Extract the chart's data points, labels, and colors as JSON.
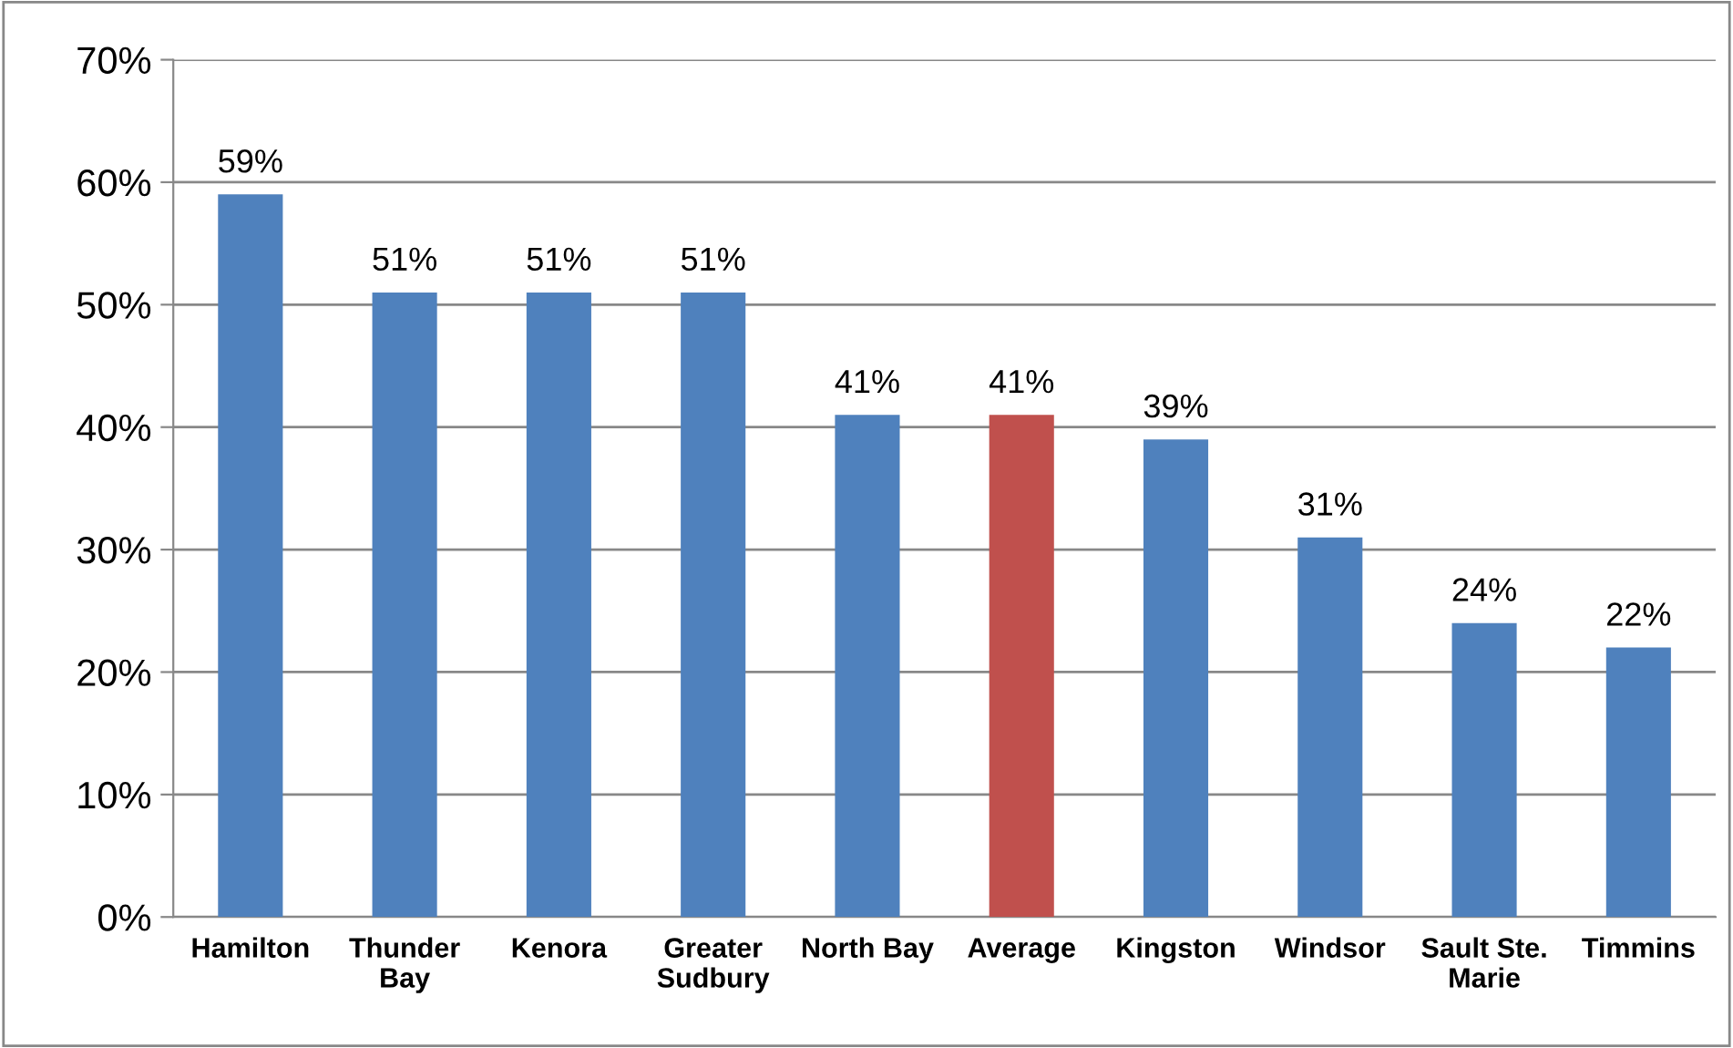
{
  "chart_data": {
    "type": "bar",
    "categories": [
      "Hamilton",
      "Thunder\nBay",
      "Kenora",
      "Greater\nSudbury",
      "North Bay",
      "Average",
      "Kingston",
      "Windsor",
      "Sault Ste.\nMarie",
      "Timmins"
    ],
    "values": [
      59,
      51,
      51,
      51,
      41,
      41,
      39,
      31,
      24,
      22
    ],
    "value_labels": [
      "59%",
      "51%",
      "51%",
      "51%",
      "41%",
      "41%",
      "39%",
      "31%",
      "24%",
      "22%"
    ],
    "colors": [
      "#4f81bd",
      "#4f81bd",
      "#4f81bd",
      "#4f81bd",
      "#4f81bd",
      "#c0504d",
      "#4f81bd",
      "#4f81bd",
      "#4f81bd",
      "#4f81bd"
    ],
    "ylim": [
      0,
      70
    ],
    "yticks": [
      {
        "value": 0,
        "label": "0%"
      },
      {
        "value": 10,
        "label": "10%"
      },
      {
        "value": 20,
        "label": "20%"
      },
      {
        "value": 30,
        "label": "30%"
      },
      {
        "value": 40,
        "label": "40%"
      },
      {
        "value": 50,
        "label": "50%"
      },
      {
        "value": 60,
        "label": "60%"
      },
      {
        "value": 70,
        "label": "70%"
      }
    ],
    "grid": "y"
  }
}
